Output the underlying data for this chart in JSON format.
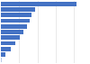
{
  "values": [
    1250,
    560,
    510,
    470,
    430,
    370,
    310,
    240,
    160,
    70,
    20
  ],
  "bar_color": "#4472c4",
  "bar_color_last": "#b8c9e8",
  "background_color": "#ffffff",
  "grid_color": "#d9d9d9",
  "xlim": [
    0,
    1450
  ],
  "figsize": [
    1.0,
    0.71
  ],
  "dpi": 100,
  "bar_height": 0.75,
  "grid_linewidth": 0.4
}
